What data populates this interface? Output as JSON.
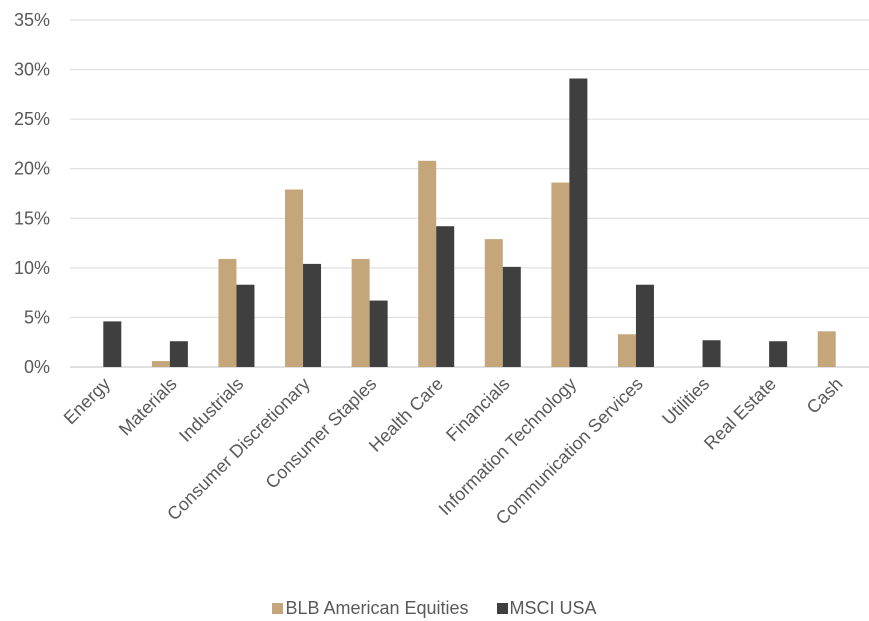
{
  "chart_data": {
    "type": "bar",
    "categories": [
      "Energy",
      "Materials",
      "Industrials",
      "Consumer Discretionary",
      "Consumer Staples",
      "Health Care",
      "Financials",
      "Information Technology",
      "Communication Services",
      "Utilities",
      "Real Estate",
      "Cash"
    ],
    "series": [
      {
        "name": "BLB American Equities",
        "color": "#c4a67a",
        "values": [
          0,
          0.6,
          10.9,
          17.9,
          10.9,
          20.8,
          12.9,
          18.6,
          3.3,
          0,
          0,
          3.6
        ]
      },
      {
        "name": "MSCI USA",
        "color": "#3f3f3f",
        "values": [
          4.6,
          2.6,
          8.3,
          10.4,
          6.7,
          14.2,
          10.1,
          29.1,
          8.3,
          2.7,
          2.6,
          0
        ]
      }
    ],
    "y_ticks": [
      "0%",
      "5%",
      "10%",
      "15%",
      "20%",
      "25%",
      "30%",
      "35%"
    ],
    "ylim": [
      0,
      35
    ],
    "title": "",
    "xlabel": "",
    "ylabel": "",
    "grid": true,
    "legend_position": "bottom"
  }
}
